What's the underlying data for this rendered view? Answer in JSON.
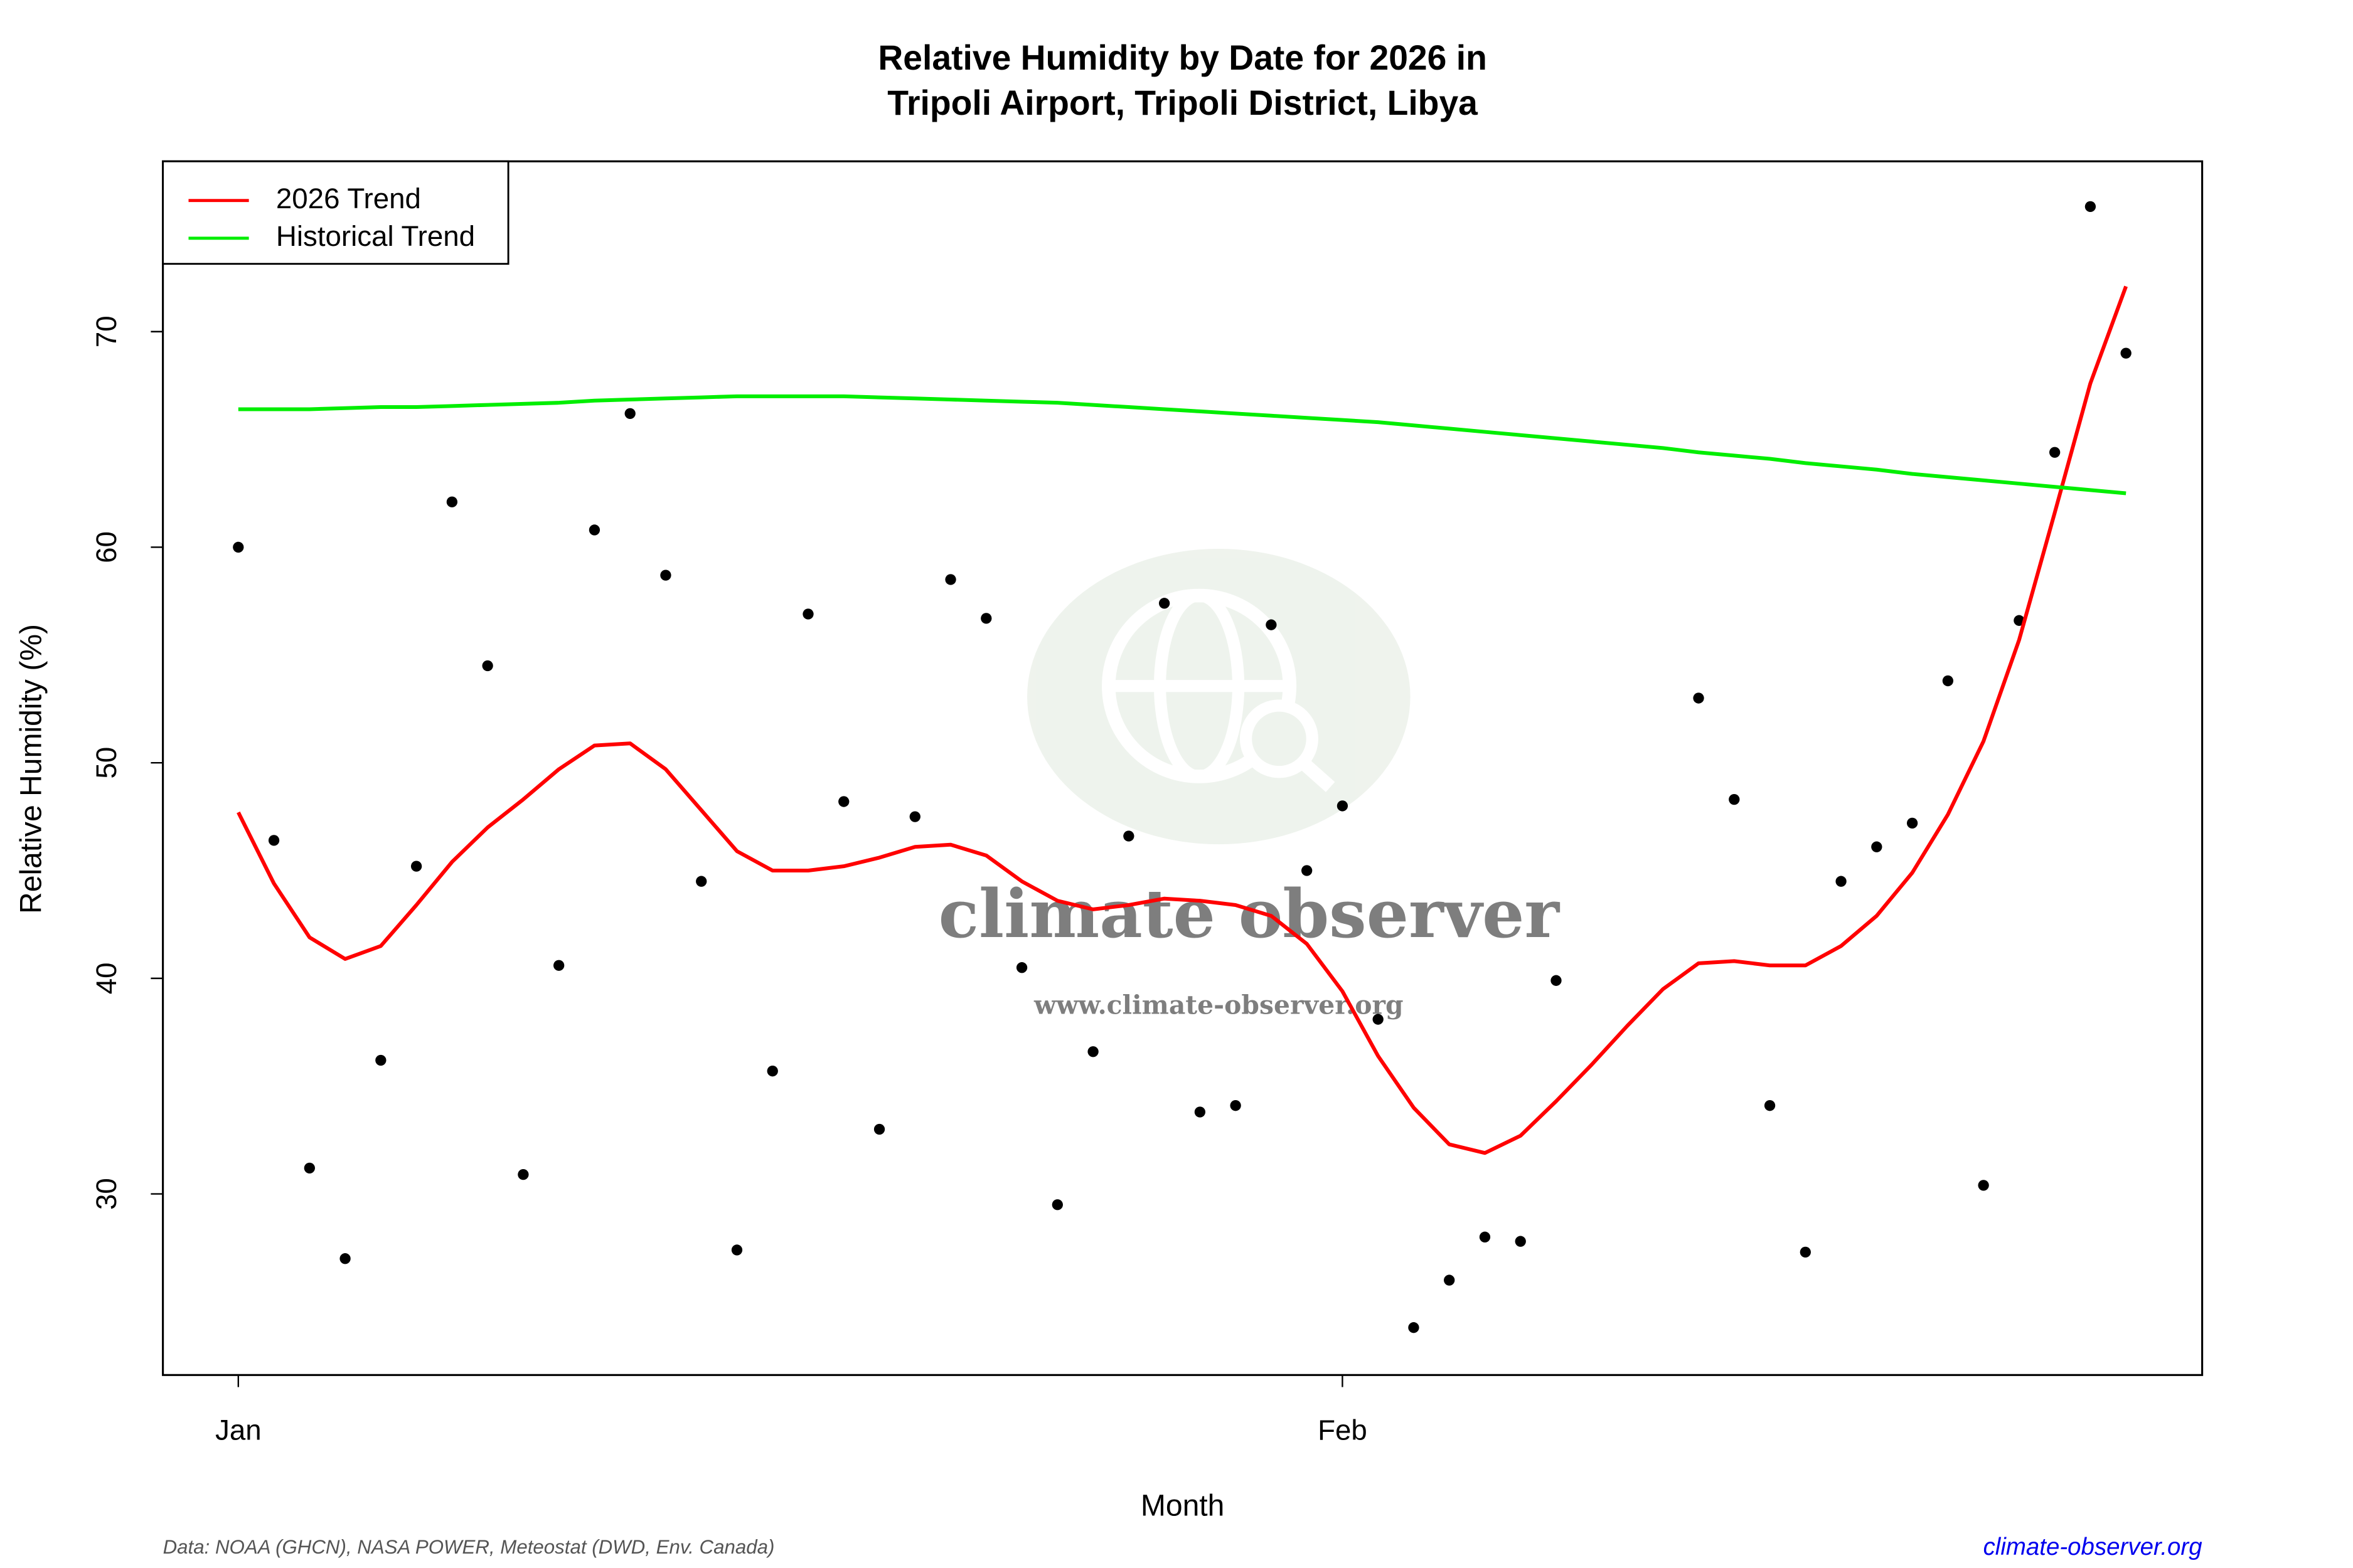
{
  "chart_data": {
    "type": "line",
    "title": [
      "Relative Humidity by Date for 2026 in",
      "Tripoli Airport, Tripoli District, Libya"
    ],
    "xlabel": "Month",
    "ylabel": "Relative Humidity (%)",
    "categories": [
      "Jan",
      null,
      null,
      null,
      null,
      null,
      null,
      null,
      null,
      null,
      null,
      null,
      null,
      null,
      null,
      null,
      null,
      null,
      null,
      null,
      null,
      null,
      null,
      null,
      null,
      null,
      null,
      null,
      null,
      null,
      null,
      "Feb",
      null,
      null,
      null,
      null,
      null,
      null,
      null,
      null,
      null,
      null,
      null,
      null,
      null,
      null,
      null,
      null,
      null,
      null,
      null,
      null,
      null,
      null
    ],
    "ylim": [
      21.6,
      77.9
    ],
    "yticks": [
      30,
      40,
      50,
      60,
      70
    ],
    "legend": "top-left",
    "series": [
      {
        "type": "scatter",
        "color": "#000000",
        "values": [
          60.0,
          46.4,
          31.2,
          27.0,
          36.2,
          45.2,
          62.1,
          54.5,
          30.9,
          40.6,
          60.8,
          66.2,
          58.7,
          44.5,
          27.4,
          35.7,
          56.9,
          48.2,
          33.0,
          47.5,
          58.5,
          56.7,
          40.5,
          29.5,
          36.6,
          46.6,
          57.4,
          33.8,
          34.1,
          56.4,
          45.0,
          48.0,
          38.1,
          23.8,
          26.0,
          28.0,
          27.8,
          39.9,
          null,
          null,
          null,
          53.0,
          48.3,
          34.1,
          27.3,
          44.5,
          46.1,
          47.2,
          53.8,
          30.4,
          56.6,
          64.4,
          75.8,
          69.0
        ]
      },
      {
        "name": "2026 Trend",
        "type": "line",
        "color": "#ff0000",
        "values": [
          47.7,
          44.4,
          41.9,
          40.9,
          41.5,
          43.4,
          45.4,
          47.0,
          48.3,
          49.7,
          50.8,
          50.9,
          49.7,
          47.8,
          45.9,
          45.0,
          45.0,
          45.2,
          45.6,
          46.1,
          46.2,
          45.7,
          44.5,
          43.6,
          43.2,
          43.4,
          43.7,
          43.6,
          43.4,
          42.9,
          41.6,
          39.4,
          36.4,
          34.0,
          32.3,
          31.9,
          32.7,
          34.3,
          36.0,
          37.8,
          39.5,
          40.7,
          40.8,
          40.6,
          40.6,
          41.5,
          42.9,
          44.9,
          47.6,
          51.0,
          55.7,
          61.6,
          67.6,
          72.1
        ]
      },
      {
        "name": "Historical Trend",
        "type": "line",
        "color": "#00ee00",
        "values": [
          66.4,
          66.4,
          66.4,
          66.45,
          66.5,
          66.5,
          66.55,
          66.6,
          66.65,
          66.7,
          66.8,
          66.85,
          66.9,
          66.95,
          67.0,
          67.0,
          67.0,
          67.0,
          66.95,
          66.9,
          66.85,
          66.8,
          66.75,
          66.7,
          66.6,
          66.5,
          66.4,
          66.3,
          66.2,
          66.1,
          66.0,
          65.9,
          65.8,
          65.65,
          65.5,
          65.35,
          65.2,
          65.05,
          64.9,
          64.75,
          64.6,
          64.4,
          64.25,
          64.1,
          63.9,
          63.75,
          63.6,
          63.4,
          63.25,
          63.1,
          62.95,
          62.8,
          62.65,
          62.5
        ]
      }
    ],
    "watermark": [
      "climate observer",
      "www.climate-observer.org"
    ],
    "source": "Data: NOAA (GHCN), NASA POWER, Meteostat (DWD, Env. Canada)",
    "site": "climate-observer.org"
  }
}
